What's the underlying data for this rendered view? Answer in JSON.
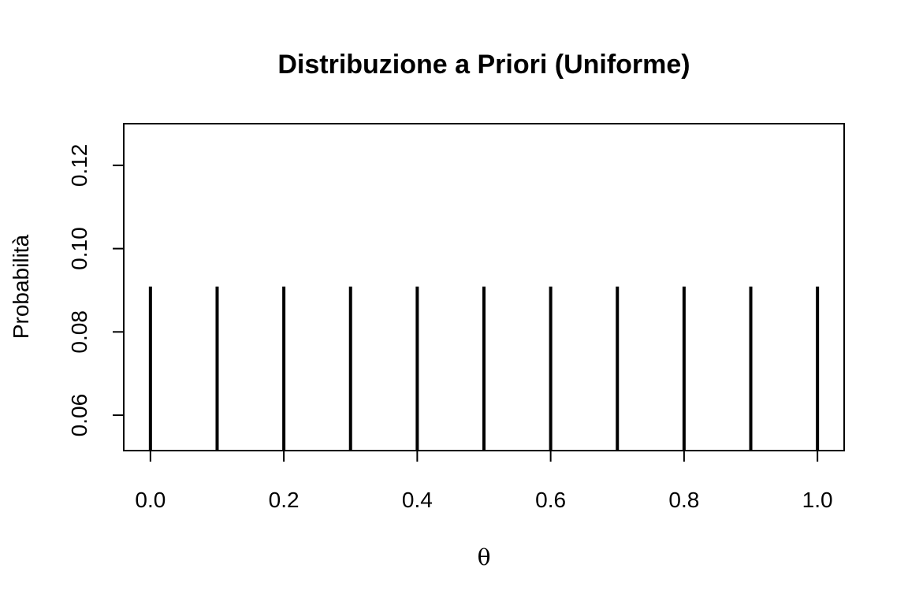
{
  "chart_data": {
    "type": "bar",
    "title": "Distribuzione a Priori (Uniforme)",
    "xlabel": "θ",
    "ylabel": "Probabilità",
    "x": [
      0.0,
      0.1,
      0.2,
      0.3,
      0.4,
      0.5,
      0.6,
      0.7,
      0.8,
      0.9,
      1.0
    ],
    "values": [
      0.0909,
      0.0909,
      0.0909,
      0.0909,
      0.0909,
      0.0909,
      0.0909,
      0.0909,
      0.0909,
      0.0909,
      0.0909
    ],
    "xlim": [
      -0.04,
      1.04
    ],
    "ylim": [
      0.0515,
      0.13
    ],
    "xticks": [
      0.0,
      0.2,
      0.4,
      0.6,
      0.8,
      1.0
    ],
    "xtick_labels": [
      "0.0",
      "0.2",
      "0.4",
      "0.6",
      "0.8",
      "1.0"
    ],
    "yticks": [
      0.06,
      0.08,
      0.1,
      0.12
    ],
    "ytick_labels": [
      "0.06",
      "0.08",
      "0.10",
      "0.12"
    ],
    "grid": false,
    "bar_color": "#000000"
  }
}
